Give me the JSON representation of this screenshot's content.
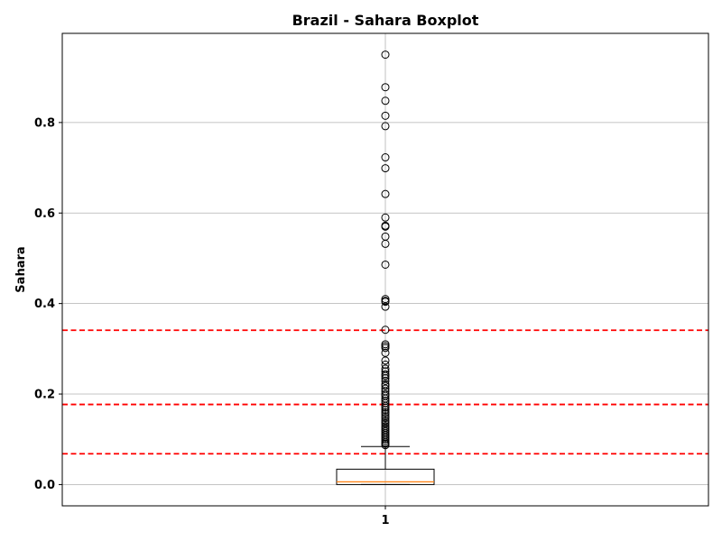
{
  "chart_data": {
    "type": "boxplot",
    "title": "Brazil - Sahara Boxplot",
    "xlabel": "",
    "ylabel": "Sahara",
    "categories": [
      "1"
    ],
    "ylim": [
      -0.047,
      0.997
    ],
    "yticks": [
      0.0,
      0.2,
      0.4,
      0.6,
      0.8
    ],
    "ytick_labels": [
      "0.0",
      "0.2",
      "0.4",
      "0.6",
      "0.8"
    ],
    "grid": true,
    "box": {
      "whisker_low": 0.0,
      "q1": 0.0,
      "median": 0.006,
      "q3": 0.034,
      "whisker_high": 0.084
    },
    "outliers": [
      0.95,
      0.878,
      0.848,
      0.815,
      0.792,
      0.723,
      0.699,
      0.642,
      0.59,
      0.572,
      0.57,
      0.548,
      0.532,
      0.486,
      0.41,
      0.406,
      0.404,
      0.393,
      0.342,
      0.31,
      0.306,
      0.302,
      0.291,
      0.274,
      0.265,
      0.256,
      0.25,
      0.244,
      0.24,
      0.235,
      0.229,
      0.222,
      0.218,
      0.212,
      0.206,
      0.2,
      0.196,
      0.19,
      0.185,
      0.18,
      0.174,
      0.17,
      0.165,
      0.16,
      0.156,
      0.151,
      0.147,
      0.142,
      0.138,
      0.134,
      0.129,
      0.125,
      0.121,
      0.117,
      0.113,
      0.109,
      0.105,
      0.101,
      0.097,
      0.093,
      0.09,
      0.087
    ],
    "reference_lines": [
      0.341,
      0.177,
      0.068
    ],
    "colors": {
      "box": "#000000",
      "median": "#ff7f0e",
      "reference_line": "#ff0000",
      "grid": "#b0b0b0"
    }
  }
}
